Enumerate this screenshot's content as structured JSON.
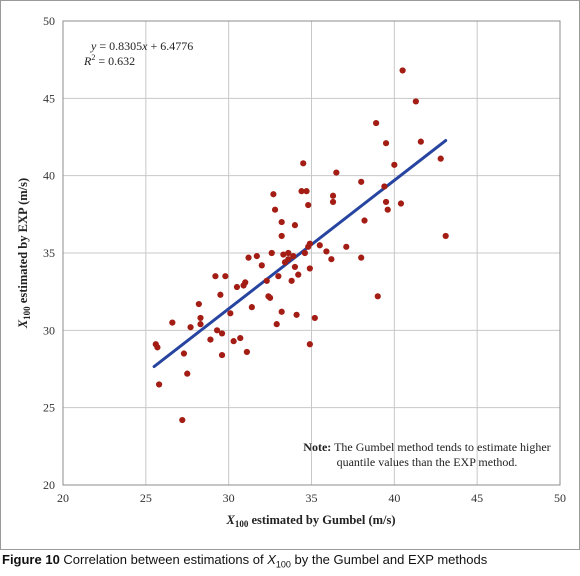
{
  "chart_data": {
    "type": "scatter",
    "xlim": [
      20,
      50
    ],
    "ylim": [
      20,
      50
    ],
    "x_ticks": [
      "20",
      "25",
      "30",
      "35",
      "40",
      "45",
      "50"
    ],
    "y_ticks": [
      "20",
      "25",
      "30",
      "35",
      "40",
      "45",
      "50"
    ],
    "grid": true,
    "xlabel": {
      "var": "X",
      "sub": "100",
      "rest": " estimated by Gumbel (m/s)"
    },
    "ylabel": {
      "var": "X",
      "sub": "100",
      "rest": " estimated by EXP (m/s)"
    },
    "equation": {
      "y": "y",
      "eq": " = 0.8305",
      "x": "x",
      "tail": " + 6.4776"
    },
    "r2": {
      "r": "R",
      "sup": "2",
      "tail": " = 0.632"
    },
    "note": {
      "bold": "Note:",
      "line1": " The Gumbel method tends to estimate higher",
      "line2": "quantile values than the EXP method."
    },
    "marker_color": "#a31d14",
    "trendline": {
      "slope": 0.8305,
      "intercept": 6.4776,
      "x_range": [
        25.5,
        43.1
      ],
      "color": "#2745a0"
    },
    "points": [
      [
        25.6,
        29.1
      ],
      [
        25.7,
        28.9
      ],
      [
        25.8,
        26.5
      ],
      [
        26.6,
        30.5
      ],
      [
        27.2,
        24.2
      ],
      [
        27.3,
        28.5
      ],
      [
        27.5,
        27.2
      ],
      [
        27.7,
        30.2
      ],
      [
        28.2,
        31.7
      ],
      [
        28.3,
        30.8
      ],
      [
        28.3,
        30.4
      ],
      [
        28.9,
        29.4
      ],
      [
        29.2,
        33.5
      ],
      [
        29.3,
        30.0
      ],
      [
        29.5,
        32.3
      ],
      [
        29.6,
        28.4
      ],
      [
        29.6,
        29.8
      ],
      [
        29.8,
        33.5
      ],
      [
        30.1,
        31.1
      ],
      [
        30.3,
        29.3
      ],
      [
        30.5,
        32.8
      ],
      [
        30.7,
        29.5
      ],
      [
        30.9,
        32.9
      ],
      [
        31.0,
        33.1
      ],
      [
        31.1,
        28.6
      ],
      [
        31.2,
        34.7
      ],
      [
        31.4,
        31.5
      ],
      [
        31.7,
        34.8
      ],
      [
        32.0,
        34.2
      ],
      [
        32.3,
        33.2
      ],
      [
        32.4,
        32.2
      ],
      [
        32.5,
        32.1
      ],
      [
        32.6,
        35.0
      ],
      [
        32.7,
        38.8
      ],
      [
        32.8,
        37.8
      ],
      [
        32.9,
        30.4
      ],
      [
        33.0,
        33.5
      ],
      [
        33.2,
        37.0
      ],
      [
        33.2,
        31.2
      ],
      [
        33.2,
        36.1
      ],
      [
        33.3,
        34.9
      ],
      [
        33.4,
        34.4
      ],
      [
        33.6,
        35.0
      ],
      [
        33.6,
        34.6
      ],
      [
        33.8,
        33.2
      ],
      [
        33.9,
        34.8
      ],
      [
        34.0,
        34.1
      ],
      [
        34.0,
        36.8
      ],
      [
        34.1,
        31.0
      ],
      [
        34.2,
        33.6
      ],
      [
        34.4,
        39.0
      ],
      [
        34.5,
        40.8
      ],
      [
        34.6,
        35.0
      ],
      [
        34.7,
        39.0
      ],
      [
        34.8,
        38.1
      ],
      [
        34.8,
        35.4
      ],
      [
        34.9,
        34.0
      ],
      [
        34.9,
        35.6
      ],
      [
        34.9,
        29.1
      ],
      [
        35.2,
        30.8
      ],
      [
        35.5,
        35.5
      ],
      [
        35.9,
        35.1
      ],
      [
        36.2,
        34.6
      ],
      [
        36.3,
        38.7
      ],
      [
        36.3,
        38.3
      ],
      [
        36.5,
        40.2
      ],
      [
        37.1,
        35.4
      ],
      [
        38.0,
        34.7
      ],
      [
        38.0,
        39.6
      ],
      [
        38.2,
        37.1
      ],
      [
        38.9,
        43.4
      ],
      [
        39.0,
        32.2
      ],
      [
        39.4,
        39.3
      ],
      [
        39.5,
        42.1
      ],
      [
        39.5,
        38.3
      ],
      [
        39.6,
        37.8
      ],
      [
        40.0,
        40.7
      ],
      [
        40.4,
        38.2
      ],
      [
        40.5,
        46.8
      ],
      [
        41.3,
        44.8
      ],
      [
        41.6,
        42.2
      ],
      [
        42.8,
        41.1
      ],
      [
        43.1,
        36.1
      ]
    ]
  },
  "caption": {
    "prefix": "Figure 10",
    "text1": " Correlation between estimations of ",
    "var": "X",
    "sub": "100",
    "text2": " by the Gumbel and EXP methods"
  }
}
